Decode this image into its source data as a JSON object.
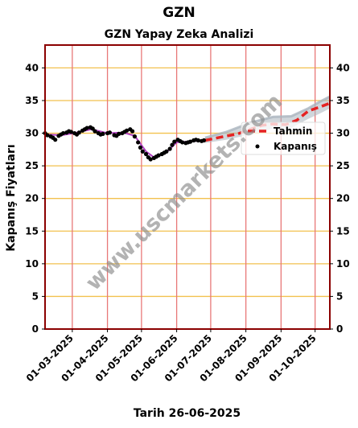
{
  "suptitle": "GZN",
  "chart_data": {
    "type": "line",
    "title": "GZN Yapay Zeka Analizi",
    "xlabel": "Tarih 26-06-2025",
    "ylabel": "Kapanış Fiyatları",
    "ylim": [
      0,
      43.5
    ],
    "yticks": [
      0,
      5,
      10,
      15,
      20,
      25,
      30,
      35,
      40
    ],
    "xlim": [
      "2025-02-05",
      "2025-10-14"
    ],
    "xticks": [
      "01-03-2025",
      "01-04-2025",
      "01-05-2025",
      "01-06-2025",
      "01-07-2025",
      "01-08-2025",
      "01-09-2025",
      "01-10-2025"
    ],
    "grid": true,
    "legend_position": "right",
    "legend": [
      "Tahmin",
      "Kapanış"
    ],
    "colors": {
      "frame": "#8b0000",
      "hgrid": "#f2c14e",
      "vgrid": "#e87878",
      "trend": "#b040c0",
      "forecast": "#e52222",
      "band": "#aab4be",
      "points": "#000000"
    },
    "series": [
      {
        "name": "Kapanış",
        "kind": "scatter",
        "points": [
          [
            "2025-02-05",
            30.0
          ],
          [
            "2025-02-07",
            29.7
          ],
          [
            "2025-02-10",
            29.5
          ],
          [
            "2025-02-12",
            29.3
          ],
          [
            "2025-02-14",
            29.0
          ],
          [
            "2025-02-17",
            29.6
          ],
          [
            "2025-02-19",
            29.8
          ],
          [
            "2025-02-21",
            30.0
          ],
          [
            "2025-02-24",
            30.1
          ],
          [
            "2025-02-26",
            30.3
          ],
          [
            "2025-02-28",
            30.2
          ],
          [
            "2025-03-03",
            30.0
          ],
          [
            "2025-03-05",
            29.8
          ],
          [
            "2025-03-07",
            30.1
          ],
          [
            "2025-03-10",
            30.4
          ],
          [
            "2025-03-12",
            30.6
          ],
          [
            "2025-03-14",
            30.8
          ],
          [
            "2025-03-17",
            30.9
          ],
          [
            "2025-03-19",
            30.7
          ],
          [
            "2025-03-21",
            30.3
          ],
          [
            "2025-03-24",
            30.0
          ],
          [
            "2025-03-26",
            29.8
          ],
          [
            "2025-03-28",
            29.9
          ],
          [
            "2025-04-01",
            30.0
          ],
          [
            "2025-04-03",
            30.1
          ],
          [
            "2025-04-07",
            29.7
          ],
          [
            "2025-04-09",
            29.6
          ],
          [
            "2025-04-11",
            29.9
          ],
          [
            "2025-04-14",
            30.0
          ],
          [
            "2025-04-16",
            30.2
          ],
          [
            "2025-04-18",
            30.4
          ],
          [
            "2025-04-21",
            30.6
          ],
          [
            "2025-04-23",
            30.3
          ],
          [
            "2025-04-25",
            29.5
          ],
          [
            "2025-04-28",
            28.6
          ],
          [
            "2025-04-30",
            27.8
          ],
          [
            "2025-05-02",
            27.2
          ],
          [
            "2025-05-05",
            26.8
          ],
          [
            "2025-05-07",
            26.3
          ],
          [
            "2025-05-09",
            26.0
          ],
          [
            "2025-05-12",
            26.2
          ],
          [
            "2025-05-14",
            26.4
          ],
          [
            "2025-05-16",
            26.6
          ],
          [
            "2025-05-19",
            26.8
          ],
          [
            "2025-05-21",
            27.0
          ],
          [
            "2025-05-23",
            27.2
          ],
          [
            "2025-05-26",
            27.6
          ],
          [
            "2025-05-28",
            28.2
          ],
          [
            "2025-05-30",
            28.7
          ],
          [
            "2025-06-02",
            29.0
          ],
          [
            "2025-06-04",
            28.8
          ],
          [
            "2025-06-06",
            28.6
          ],
          [
            "2025-06-09",
            28.5
          ],
          [
            "2025-06-11",
            28.6
          ],
          [
            "2025-06-13",
            28.7
          ],
          [
            "2025-06-16",
            28.9
          ],
          [
            "2025-06-18",
            29.0
          ],
          [
            "2025-06-20",
            28.9
          ],
          [
            "2025-06-23",
            28.8
          ],
          [
            "2025-06-25",
            28.9
          ]
        ]
      },
      {
        "name": "Trend",
        "kind": "line",
        "points": [
          [
            "2025-02-05",
            29.8
          ],
          [
            "2025-02-20",
            29.7
          ],
          [
            "2025-03-05",
            30.1
          ],
          [
            "2025-03-18",
            30.6
          ],
          [
            "2025-04-01",
            30.0
          ],
          [
            "2025-04-15",
            30.1
          ],
          [
            "2025-04-25",
            29.6
          ],
          [
            "2025-05-05",
            27.2
          ],
          [
            "2025-05-12",
            26.3
          ],
          [
            "2025-05-22",
            26.9
          ],
          [
            "2025-06-01",
            28.6
          ],
          [
            "2025-06-10",
            28.7
          ],
          [
            "2025-06-25",
            28.9
          ]
        ]
      },
      {
        "name": "Tahmin",
        "kind": "dashed",
        "points": [
          [
            "2025-06-26",
            28.9
          ],
          [
            "2025-07-10",
            29.4
          ],
          [
            "2025-07-25",
            29.9
          ],
          [
            "2025-08-05",
            30.6
          ],
          [
            "2025-08-15",
            31.2
          ],
          [
            "2025-08-25",
            31.4
          ],
          [
            "2025-09-05",
            31.3
          ],
          [
            "2025-09-15",
            32.0
          ],
          [
            "2025-09-25",
            33.4
          ],
          [
            "2025-10-05",
            34.0
          ],
          [
            "2025-10-14",
            34.6
          ]
        ]
      },
      {
        "name": "Band",
        "kind": "band",
        "upper": [
          [
            "2025-06-26",
            29.3
          ],
          [
            "2025-07-15",
            30.2
          ],
          [
            "2025-08-05",
            31.6
          ],
          [
            "2025-08-25",
            32.5
          ],
          [
            "2025-09-10",
            32.6
          ],
          [
            "2025-09-25",
            33.8
          ],
          [
            "2025-10-05",
            34.8
          ],
          [
            "2025-10-14",
            35.6
          ]
        ],
        "lower": [
          [
            "2025-06-26",
            28.5
          ],
          [
            "2025-07-15",
            29.0
          ],
          [
            "2025-08-05",
            29.8
          ],
          [
            "2025-08-25",
            30.7
          ],
          [
            "2025-09-10",
            30.8
          ],
          [
            "2025-09-25",
            32.2
          ],
          [
            "2025-10-05",
            33.0
          ],
          [
            "2025-10-14",
            33.8
          ]
        ]
      }
    ]
  },
  "watermark": "www.uscmarkets.com"
}
